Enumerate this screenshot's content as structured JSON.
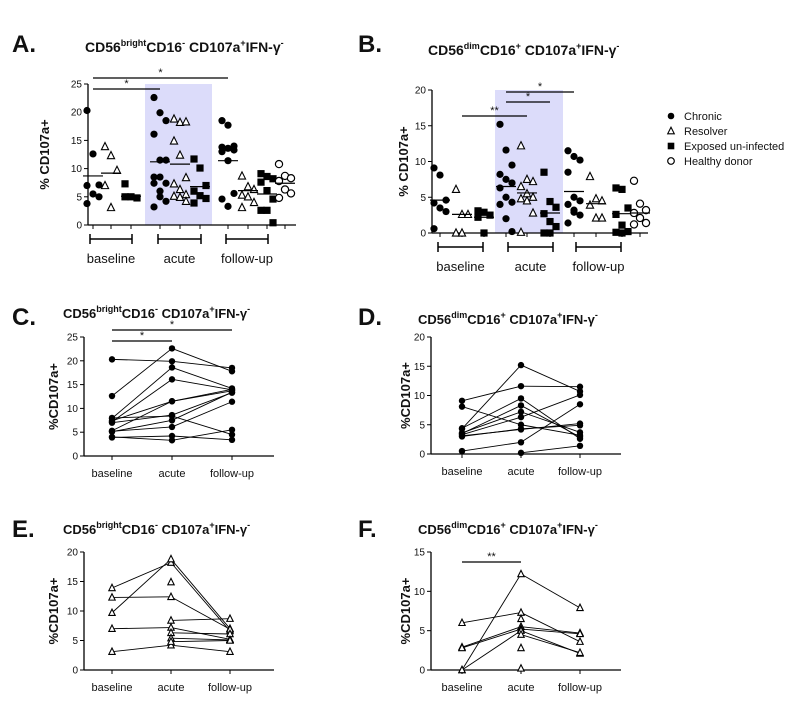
{
  "chart_data": [
    {
      "panel": "A.",
      "type": "scatter",
      "title_parts": [
        "CD56",
        "bright",
        "CD16",
        "-",
        " CD107a",
        "+",
        "IFN-γ",
        "-"
      ],
      "ylabel": "% CD107a+",
      "ylim": [
        0,
        25
      ],
      "yticks": [
        0,
        5,
        10,
        15,
        20,
        25
      ],
      "timepoints": [
        "baseline",
        "acute",
        "follow-up"
      ],
      "shaded": "acute",
      "groups": [
        {
          "tp": "baseline",
          "series": "Chronic",
          "values": [
            20.3,
            12.6,
            7.1,
            7,
            5.5,
            5,
            3.8
          ],
          "center": 8.7
        },
        {
          "tp": "baseline",
          "series": "Resolver",
          "values": [
            13.9,
            12.3,
            9.7,
            7,
            3.1
          ],
          "center": 9.2
        },
        {
          "tp": "baseline",
          "series": "Exposed un-infected",
          "values": [
            7.3,
            5,
            4.8,
            5
          ],
          "center": 5.1
        },
        {
          "tp": "acute",
          "series": "Chronic",
          "values": [
            22.6,
            19.9,
            18.5,
            16.1,
            11.5,
            11.5,
            8.5,
            8.5,
            7.4,
            7.4,
            6,
            4.2,
            3.2,
            5
          ],
          "center": 11.2
        },
        {
          "tp": "acute",
          "series": "Resolver",
          "values": [
            18.8,
            18.2,
            18.3,
            14.9,
            12.4,
            8.4,
            7.3,
            6.3,
            5.4,
            5.1,
            4.9,
            4.2
          ],
          "center": 10.8
        },
        {
          "tp": "acute",
          "series": "Exposed un-infected",
          "values": [
            11.7,
            10.1,
            7,
            6,
            5.2,
            4.7,
            3.9
          ],
          "center": 6.8
        },
        {
          "tp": "follow-up",
          "series": "Chronic",
          "values": [
            18.5,
            17.7,
            14,
            13.8,
            13.6,
            13.3,
            13,
            11.4,
            5.6,
            4.6,
            3.3
          ],
          "center": 11.4
        },
        {
          "tp": "follow-up",
          "series": "Resolver",
          "values": [
            8.7,
            6.8,
            6.3,
            5.3,
            5,
            4,
            3.1
          ],
          "center": 6.1
        },
        {
          "tp": "follow-up",
          "series": "Exposed un-infected",
          "values": [
            9.1,
            8.6,
            8.2,
            7.6,
            6.1,
            4.6,
            2.6,
            2.6,
            0.4
          ],
          "center": 5.5
        },
        {
          "tp": "follow-up",
          "series": "Healthy donor",
          "values": [
            10.8,
            8.7,
            8.3,
            7.8,
            6.3,
            5.6,
            4.8
          ],
          "center": 7.4
        }
      ],
      "significance": [
        {
          "from": "baseline-Chronic",
          "to": "acute-Chronic",
          "label": "*"
        },
        {
          "from": "baseline-Chronic",
          "to": "follow-up-Chronic",
          "label": "*"
        }
      ]
    },
    {
      "panel": "B.",
      "type": "scatter",
      "title_parts": [
        "CD56",
        "dim",
        "CD16",
        "+",
        " CD107a",
        "+",
        "IFN-γ",
        "-"
      ],
      "ylabel": "% CD107a+",
      "ylim": [
        0,
        20
      ],
      "yticks": [
        0,
        5,
        10,
        15,
        20
      ],
      "timepoints": [
        "baseline",
        "acute",
        "follow-up"
      ],
      "shaded": "acute",
      "groups": [
        {
          "tp": "baseline",
          "series": "Chronic",
          "values": [
            9.1,
            8.1,
            4.6,
            4.2,
            3.5,
            3,
            0.6
          ],
          "center": 4.6
        },
        {
          "tp": "baseline",
          "series": "Resolver",
          "values": [
            6.1,
            2.6,
            2.6,
            0,
            0
          ],
          "center": 2.6
        },
        {
          "tp": "baseline",
          "series": "Exposed un-infected",
          "values": [
            3.1,
            2.9,
            2.5,
            2.2,
            0
          ],
          "center": 2.2
        },
        {
          "tp": "acute",
          "series": "Chronic",
          "values": [
            15.2,
            11.6,
            9.5,
            8.2,
            7.5,
            7,
            6.3,
            5,
            4.3,
            4,
            2,
            0.2
          ],
          "center": 6.5
        },
        {
          "tp": "acute",
          "series": "Resolver",
          "values": [
            12.2,
            7.5,
            7.2,
            6.5,
            5.5,
            5,
            4.8,
            4.5,
            2.8,
            0.1
          ],
          "center": 5.6
        },
        {
          "tp": "acute",
          "series": "Exposed un-infected",
          "values": [
            8.5,
            4.4,
            3.6,
            2.7,
            1.6,
            0.9,
            0,
            0
          ],
          "center": 2.8
        },
        {
          "tp": "follow-up",
          "series": "Chronic",
          "values": [
            11.5,
            10.7,
            10.2,
            8.5,
            5,
            4.5,
            4,
            3.2,
            2.5,
            1.4,
            2.9
          ],
          "center": 5.8
        },
        {
          "tp": "follow-up",
          "series": "Resolver",
          "values": [
            7.9,
            4.8,
            4.5,
            3.9,
            2.1,
            2.1
          ],
          "center": 4.1
        },
        {
          "tp": "follow-up",
          "series": "Exposed un-infected",
          "values": [
            6.3,
            6.1,
            3.5,
            2.6,
            1.1,
            0.2,
            0.1,
            0
          ],
          "center": 2.7
        },
        {
          "tp": "follow-up",
          "series": "Healthy donor",
          "values": [
            7.3,
            4.1,
            3.2,
            2.8,
            2.1,
            1.4,
            1.2
          ],
          "center": 2.8
        }
      ],
      "significance": [
        {
          "from": "baseline-Resolver",
          "to": "acute-Resolver",
          "label": "**"
        },
        {
          "from": "acute-Chronic",
          "to": "acute-Exposed un-infected",
          "label": "*"
        },
        {
          "from": "acute-Chronic",
          "to": "follow-up-Chronic",
          "label": "*"
        }
      ],
      "legend": {
        "placement": "right",
        "entries": [
          {
            "label": "Chronic",
            "marker": "filled-circle"
          },
          {
            "label": "Resolver",
            "marker": "open-triangle"
          },
          {
            "label": "Exposed un-infected",
            "marker": "filled-square"
          },
          {
            "label": "Healthy donor",
            "marker": "open-circle"
          }
        ]
      }
    },
    {
      "panel": "C.",
      "type": "line",
      "marker": "filled-circle",
      "title_parts": [
        "CD56",
        "bright",
        "CD16",
        "-",
        " CD107a",
        "+",
        "IFN-γ",
        "-"
      ],
      "ylabel": "%CD107a+",
      "ylim": [
        0,
        25
      ],
      "yticks": [
        0,
        5,
        10,
        15,
        20,
        25
      ],
      "x": [
        "baseline",
        "acute",
        "follow-up"
      ],
      "pairs": [
        [
          20.3,
          19.9,
          18.5
        ],
        [
          12.6,
          22.6,
          17.8
        ],
        [
          7.9,
          18.6,
          14.2
        ],
        [
          7.4,
          11.5,
          13.7
        ],
        [
          7,
          8.6,
          13.3
        ],
        [
          5.3,
          11.5,
          14
        ],
        [
          5.1,
          7.5,
          13.4
        ],
        [
          5.2,
          6.1,
          11.4
        ],
        [
          8,
          8.4,
          4.5
        ],
        [
          7.2,
          16.1,
          13.9
        ],
        [
          4,
          3.3,
          5.5
        ],
        [
          3.9,
          4.2,
          3.4
        ]
      ],
      "significance": [
        {
          "from": "baseline",
          "to": "acute",
          "label": "*"
        },
        {
          "from": "baseline",
          "to": "follow-up",
          "label": "*"
        }
      ]
    },
    {
      "panel": "D.",
      "type": "line",
      "marker": "filled-circle",
      "title_parts": [
        "CD56",
        "dim",
        "CD16",
        "+",
        " CD107a",
        "+",
        "IFN-γ",
        "-"
      ],
      "ylabel": "%CD107a+",
      "ylim": [
        0,
        20
      ],
      "yticks": [
        0,
        5,
        10,
        15,
        20
      ],
      "x": [
        "baseline",
        "acute",
        "follow-up"
      ],
      "pairs": [
        [
          9.1,
          11.6,
          11.5
        ],
        [
          8.1,
          5,
          3.2
        ],
        [
          4.3,
          15.2,
          10.7
        ],
        [
          4.4,
          9.5,
          2.6
        ],
        [
          3.5,
          8.3,
          2.9
        ],
        [
          3.3,
          6.3,
          10.1
        ],
        [
          3.1,
          4.2,
          5.2
        ],
        [
          3,
          4.3,
          4.9
        ],
        [
          0.5,
          2,
          8.5
        ],
        [
          3.6,
          7.2,
          3.7
        ],
        [
          null,
          0.2,
          1.4
        ]
      ],
      "significance": []
    },
    {
      "panel": "E.",
      "type": "line",
      "marker": "open-triangle",
      "title_parts": [
        "CD56",
        "bright",
        "CD16",
        "-",
        " CD107a",
        "+",
        "IFN-γ",
        "-"
      ],
      "ylabel": "%CD107a+",
      "ylim": [
        0,
        20
      ],
      "yticks": [
        0,
        5,
        10,
        15,
        20
      ],
      "x": [
        "baseline",
        "acute",
        "follow-up"
      ],
      "pairs": [
        [
          13.9,
          18.2,
          6.6
        ],
        [
          9.7,
          18.8,
          7
        ],
        [
          12.3,
          12.4,
          6.9
        ],
        [
          7,
          7.2,
          5.2
        ],
        [
          3.1,
          4.2,
          3.1
        ],
        [
          null,
          8.4,
          8.7
        ],
        [
          null,
          6.3,
          6.1
        ],
        [
          null,
          5.4,
          5.1
        ],
        [
          null,
          4.8,
          5
        ],
        [
          null,
          14.9,
          null
        ]
      ],
      "significance": []
    },
    {
      "panel": "F.",
      "type": "line",
      "marker": "open-triangle",
      "title_parts": [
        "CD56",
        "dim",
        "CD16",
        "+",
        " CD107a",
        "+",
        "IFN-γ",
        "-"
      ],
      "ylabel": "%CD107a+",
      "ylim": [
        0,
        15
      ],
      "yticks": [
        0,
        5,
        10,
        15
      ],
      "x": [
        "baseline",
        "acute",
        "follow-up"
      ],
      "pairs": [
        [
          6,
          7.3,
          3.6
        ],
        [
          2.9,
          5.5,
          4.7
        ],
        [
          2.8,
          5.2,
          4.6
        ],
        [
          0,
          12.2,
          7.9
        ],
        [
          0,
          5,
          2.1
        ],
        [
          null,
          4.5,
          2.2
        ],
        [
          null,
          6.5,
          null
        ],
        [
          null,
          2.8,
          null
        ],
        [
          null,
          0.2,
          null
        ]
      ],
      "significance": [
        {
          "from": "baseline",
          "to": "acute",
          "label": "**"
        }
      ]
    }
  ]
}
